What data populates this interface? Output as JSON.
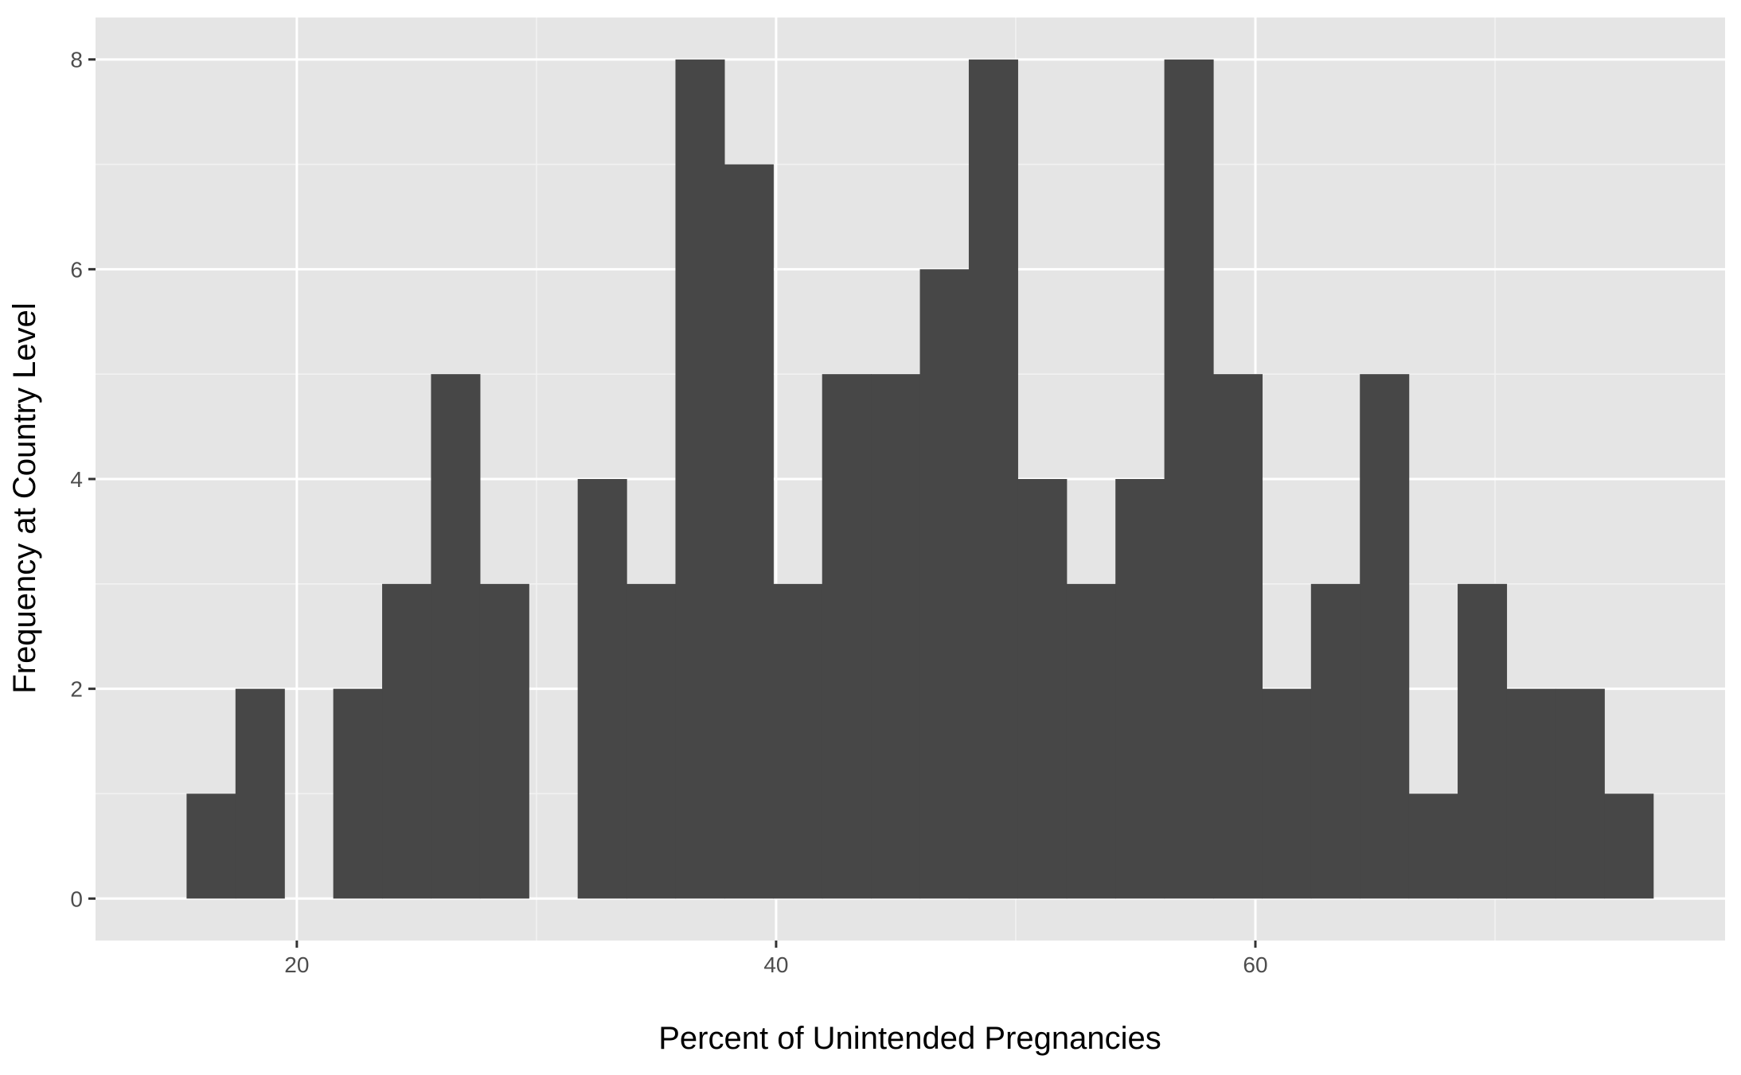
{
  "chart_data": {
    "type": "bar",
    "subtype": "histogram",
    "title": "",
    "xlabel": "Percent of Unintended Pregnancies",
    "ylabel": "Frequency at Country Level",
    "bin_width": 2.04,
    "bins": [
      {
        "x_start": 15.4,
        "x_end": 17.44,
        "count": 1
      },
      {
        "x_start": 17.44,
        "x_end": 19.48,
        "count": 2
      },
      {
        "x_start": 19.48,
        "x_end": 21.52,
        "count": 0
      },
      {
        "x_start": 21.52,
        "x_end": 23.56,
        "count": 2
      },
      {
        "x_start": 23.56,
        "x_end": 25.6,
        "count": 3
      },
      {
        "x_start": 25.6,
        "x_end": 27.64,
        "count": 5
      },
      {
        "x_start": 27.64,
        "x_end": 29.68,
        "count": 3
      },
      {
        "x_start": 29.68,
        "x_end": 31.72,
        "count": 0
      },
      {
        "x_start": 31.72,
        "x_end": 33.76,
        "count": 4
      },
      {
        "x_start": 33.76,
        "x_end": 35.8,
        "count": 3
      },
      {
        "x_start": 35.8,
        "x_end": 37.84,
        "count": 8
      },
      {
        "x_start": 37.84,
        "x_end": 39.88,
        "count": 7
      },
      {
        "x_start": 39.88,
        "x_end": 41.92,
        "count": 3
      },
      {
        "x_start": 41.92,
        "x_end": 43.96,
        "count": 5
      },
      {
        "x_start": 43.96,
        "x_end": 46.0,
        "count": 5
      },
      {
        "x_start": 46.0,
        "x_end": 48.04,
        "count": 6
      },
      {
        "x_start": 48.04,
        "x_end": 50.08,
        "count": 8
      },
      {
        "x_start": 50.08,
        "x_end": 52.12,
        "count": 4
      },
      {
        "x_start": 52.12,
        "x_end": 54.16,
        "count": 3
      },
      {
        "x_start": 54.16,
        "x_end": 56.2,
        "count": 4
      },
      {
        "x_start": 56.2,
        "x_end": 58.24,
        "count": 8
      },
      {
        "x_start": 58.24,
        "x_end": 60.28,
        "count": 5
      },
      {
        "x_start": 60.28,
        "x_end": 62.32,
        "count": 2
      },
      {
        "x_start": 62.32,
        "x_end": 64.36,
        "count": 3
      },
      {
        "x_start": 64.36,
        "x_end": 66.4,
        "count": 5
      },
      {
        "x_start": 66.4,
        "x_end": 68.44,
        "count": 1
      },
      {
        "x_start": 68.44,
        "x_end": 70.48,
        "count": 3
      },
      {
        "x_start": 70.48,
        "x_end": 72.52,
        "count": 2
      },
      {
        "x_start": 72.52,
        "x_end": 74.56,
        "count": 2
      },
      {
        "x_start": 74.56,
        "x_end": 76.6,
        "count": 1
      }
    ],
    "xlim": [
      11.6,
      79.6
    ],
    "ylim": [
      -0.4,
      8.4
    ],
    "x_ticks": [
      20,
      40,
      60
    ],
    "x_tick_labels": [
      "20",
      "40",
      "60"
    ],
    "y_ticks": [
      0,
      2,
      4,
      6,
      8
    ],
    "y_tick_labels": [
      "0",
      "2",
      "4",
      "6",
      "8"
    ],
    "grid": true,
    "legend": "none",
    "colors": {
      "bar_fill": "#474747",
      "panel_background": "#e5e5e5",
      "grid_major": "#ffffff",
      "grid_minor": "#f2f2f2",
      "tick_label": "#4d4d4d",
      "axis_title": "#000000"
    }
  }
}
